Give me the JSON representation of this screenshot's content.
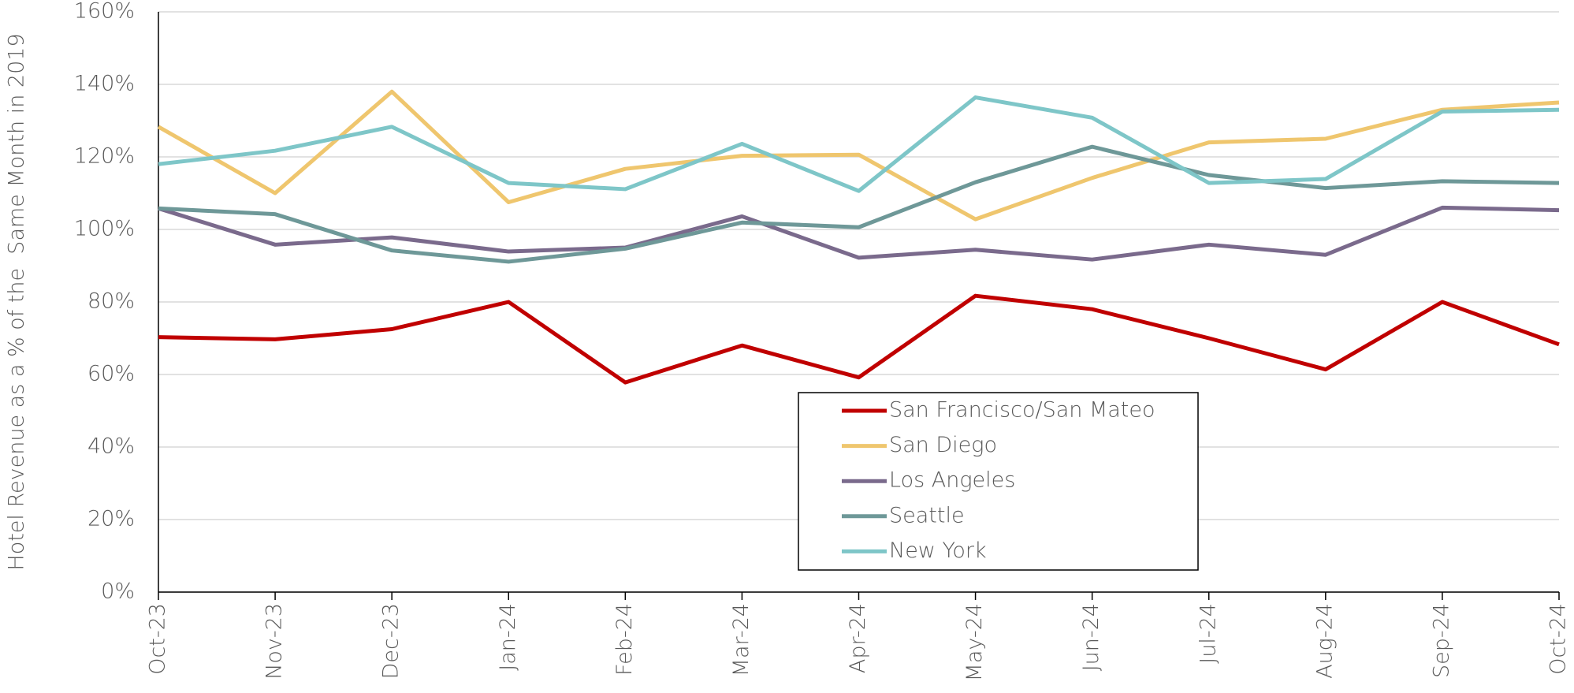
{
  "chart_data": {
    "type": "line",
    "y_label": "Hotel Revenue as a % of the  Same Month in 2019",
    "categories": [
      "Oct-23",
      "Nov-23",
      "Dec-23",
      "Jan-24",
      "Feb-24",
      "Mar-24",
      "Apr-24",
      "May-24",
      "Jun-24",
      "Jul-24",
      "Aug-24",
      "Sep-24",
      "Oct-24"
    ],
    "series": [
      {
        "name": "San Francisco/San Mateo",
        "color": "#c00000",
        "values": [
          70.3,
          69.7,
          72.5,
          80,
          57.8,
          68,
          59.2,
          81.7,
          78,
          70,
          61.4,
          80,
          68.3
        ]
      },
      {
        "name": "San Diego",
        "color": "#efc66e",
        "values": [
          128.3,
          110,
          138,
          107.5,
          116.7,
          120.3,
          120.6,
          102.8,
          114.2,
          124,
          125,
          133,
          135
        ]
      },
      {
        "name": "Los Angeles",
        "color": "#7a6a8c",
        "values": [
          105.8,
          95.8,
          97.8,
          93.9,
          95,
          103.6,
          92.2,
          94.4,
          91.7,
          95.8,
          93,
          106,
          105.3
        ]
      },
      {
        "name": "Seattle",
        "color": "#6e9898",
        "values": [
          105.8,
          104.2,
          94.2,
          91.1,
          94.7,
          101.9,
          100.6,
          113,
          122.8,
          115,
          111.4,
          113.3,
          112.8
        ]
      },
      {
        "name": "New York",
        "color": "#7ec6c8",
        "values": [
          118,
          121.7,
          128.3,
          112.8,
          111.1,
          123.6,
          110.6,
          136.4,
          130.8,
          112.8,
          113.9,
          132.5,
          133
        ]
      }
    ],
    "ylim": [
      0,
      160
    ],
    "yticks": [
      {
        "value": 0,
        "label": "0%"
      },
      {
        "value": 20,
        "label": "20%"
      },
      {
        "value": 40,
        "label": "40%"
      },
      {
        "value": 60,
        "label": "60%"
      },
      {
        "value": 80,
        "label": "80%"
      },
      {
        "value": 100,
        "label": "100%"
      },
      {
        "value": 120,
        "label": "120%"
      },
      {
        "value": 140,
        "label": "140%"
      },
      {
        "value": 160,
        "label": "160%"
      }
    ],
    "grid": true,
    "legend": "lower center"
  }
}
